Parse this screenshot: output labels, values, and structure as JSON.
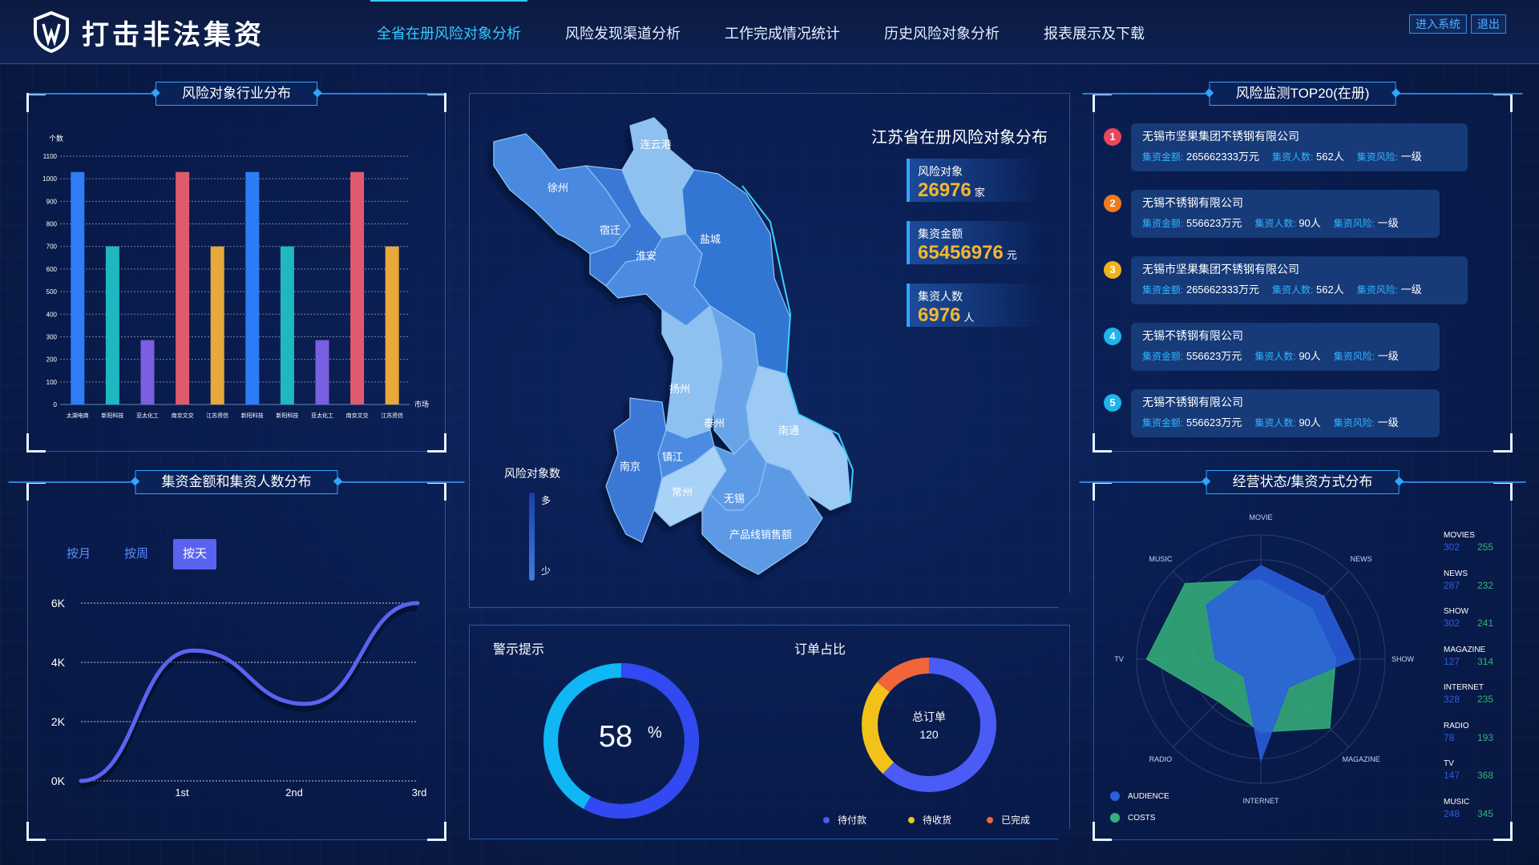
{
  "header": {
    "logo_text": "打击非法集资",
    "nav": [
      {
        "label": "全省在册风险对象分析"
      },
      {
        "label": "风险发现渠道分析"
      },
      {
        "label": "工作完成情况统计"
      },
      {
        "label": "历史风险对象分析"
      },
      {
        "label": "报表展示及下载"
      }
    ],
    "enter_label": "进入系统",
    "exit_label": "退出"
  },
  "industry_panel": {
    "title": "风险对象行业分布",
    "y_unit": "个数",
    "x_unit": "市场",
    "chart_data": {
      "type": "bar",
      "categories": [
        "太湖电商",
        "新阳科技",
        "亚太化工",
        "南京文交",
        "江苏资信",
        "新阳科技",
        "新阳科技",
        "亚太化工",
        "南京文交",
        "江苏资信"
      ],
      "values": [
        1030,
        700,
        285,
        1030,
        700,
        1030,
        700,
        285,
        1030,
        700
      ],
      "colors": [
        "#2e7cf6",
        "#1fb8c0",
        "#7a5fe0",
        "#e05a6e",
        "#e8a83a",
        "#2e7cf6",
        "#1fb8c0",
        "#7a5fe0",
        "#e05a6e",
        "#e8a83a"
      ],
      "yticks": [
        "0",
        "100",
        "200",
        "300",
        "400",
        "500",
        "600",
        "700",
        "800",
        "900",
        "1000",
        "1100"
      ],
      "ylim": [
        0,
        1100
      ],
      "grid": true
    }
  },
  "amount_panel": {
    "title": "集资金额和集资人数分布",
    "tabs": [
      {
        "label": "按月"
      },
      {
        "label": "按周"
      },
      {
        "label": "按天"
      }
    ],
    "chart_data": {
      "type": "line",
      "x": [
        "",
        "1st",
        "2nd",
        "3rd"
      ],
      "yticks": [
        "0K",
        "2K",
        "4K",
        "6K"
      ],
      "ylim": [
        0,
        6000
      ],
      "series": [
        {
          "values": [
            0,
            4400,
            2600,
            6000
          ],
          "color": "#5a63f0"
        }
      ]
    }
  },
  "map_panel": {
    "title": "江苏省在册风险对象分布",
    "cities": [
      "连云港",
      "徐州",
      "宿迁",
      "淮安",
      "盐城",
      "扬州",
      "泰州",
      "南通",
      "南京",
      "镇江",
      "常州",
      "无锡",
      "产品线销售额"
    ],
    "legend_title": "风险对象数",
    "legend_high": "多",
    "legend_low": "少",
    "stats": [
      {
        "label": "风险对象",
        "value": "26976",
        "unit": "家"
      },
      {
        "label": "集资金额",
        "value": "65456976",
        "unit": "元"
      },
      {
        "label": "集资人数",
        "value": "6976",
        "unit": "人"
      }
    ]
  },
  "alert_panel": {
    "title": "警示提示",
    "percent": "58",
    "percent_sign": "%",
    "gauge_value": 0.58
  },
  "order_panel": {
    "title": "订单占比",
    "center_label": "总订单",
    "center_value": "120",
    "chart_data": {
      "type": "pie",
      "slices": [
        {
          "name": "待付款",
          "value": 0.62,
          "color": "#4a5cf5"
        },
        {
          "name": "待收货",
          "value": 0.24,
          "color": "#f2c21a"
        },
        {
          "name": "已完成",
          "value": 0.14,
          "color": "#f0653a"
        }
      ]
    }
  },
  "top20_panel": {
    "title": "风险监测TOP20(在册)",
    "k_amount": "集资金额:",
    "k_people": "集资人数:",
    "k_risk": "集资风险:",
    "items": [
      {
        "rank": "1",
        "color": "#e8475d",
        "name": "无锡市坚果集团不锈钢有限公司",
        "amount": "265662333万元",
        "people": "562人",
        "risk": "一级"
      },
      {
        "rank": "2",
        "color": "#f27a1a",
        "name": "无锡不锈钢有限公司",
        "amount": "556623万元",
        "people": "90人",
        "risk": "一级"
      },
      {
        "rank": "3",
        "color": "#f2b31a",
        "name": "无锡市坚果集团不锈钢有限公司",
        "amount": "265662333万元",
        "people": "562人",
        "risk": "一级"
      },
      {
        "rank": "4",
        "color": "#1eb5ea",
        "name": "无锡不锈钢有限公司",
        "amount": "556623万元",
        "people": "90人",
        "risk": "一级"
      },
      {
        "rank": "5",
        "color": "#1eb5ea",
        "name": "无锡不锈钢有限公司",
        "amount": "556623万元",
        "people": "90人",
        "risk": "一级"
      }
    ]
  },
  "radar_panel": {
    "title": "经营状态/集资方式分布",
    "chart_data": {
      "type": "radar",
      "axes": [
        "MOVIE",
        "NEWS",
        "SHOW",
        "MAGAZINE",
        "INTERNET",
        "RADIO",
        "TV",
        "MUSIC"
      ],
      "series": [
        {
          "name": "AUDIENCE",
          "color": "#2a5fe0",
          "values": [
            302,
            287,
            302,
            127,
            328,
            78,
            147,
            248
          ]
        },
        {
          "name": "COSTS",
          "color": "#36b27a",
          "values": [
            255,
            232,
            241,
            314,
            235,
            193,
            368,
            345
          ]
        }
      ],
      "max": 400
    },
    "side_labels": [
      "MOVIES",
      "NEWS",
      "SHOW",
      "MAGAZINE",
      "INTERNET",
      "RADIO",
      "TV",
      "MUSIC"
    ],
    "side_a": [
      "302",
      "287",
      "302",
      "127",
      "328",
      "78",
      "147",
      "248"
    ],
    "side_b": [
      "255",
      "232",
      "241",
      "314",
      "235",
      "193",
      "368",
      "345"
    ]
  }
}
